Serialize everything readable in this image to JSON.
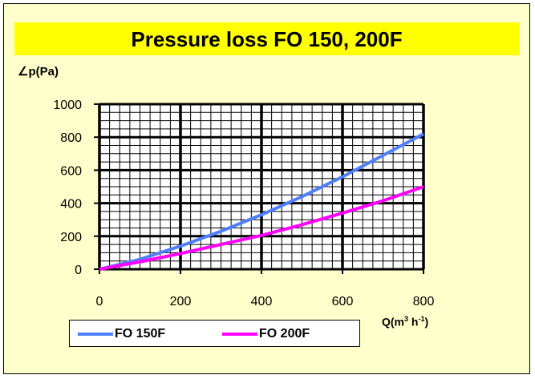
{
  "title": "Pressure loss FO 150, 200F",
  "axis": {
    "ylabel": "∠p(Pa)",
    "xlabel_parts": [
      "Q(m",
      "3",
      " h",
      "-1",
      ")"
    ]
  },
  "legend": [
    {
      "label": "FO 150F",
      "color": "#4f7fff"
    },
    {
      "label": "FO 200F",
      "color": "#ff00ff"
    }
  ],
  "colors": {
    "background": "#ffffcc",
    "title_bar": "#ffff00",
    "plot_area": "#ffffff",
    "grid": "#000000"
  },
  "chart_data": {
    "type": "line",
    "title": "Pressure loss FO 150, 200F",
    "xlabel": "Q(m3 h-1)",
    "ylabel": "∠p(Pa)",
    "xlim": [
      0,
      800
    ],
    "ylim": [
      0,
      1000
    ],
    "x_ticks": [
      0,
      200,
      400,
      600,
      800
    ],
    "y_ticks": [
      0,
      200,
      400,
      600,
      800,
      1000
    ],
    "grid": true,
    "legend_position": "bottom-left",
    "series": [
      {
        "name": "FO 150F",
        "color": "#4f7fff",
        "x": [
          0,
          100,
          200,
          300,
          400,
          500,
          600,
          700,
          800
        ],
        "y": [
          0,
          60,
          140,
          230,
          330,
          440,
          560,
          690,
          820
        ]
      },
      {
        "name": "FO 200F",
        "color": "#ff00ff",
        "x": [
          0,
          100,
          200,
          300,
          400,
          500,
          600,
          700,
          800
        ],
        "y": [
          0,
          45,
          95,
          150,
          205,
          270,
          340,
          415,
          500
        ]
      }
    ]
  }
}
